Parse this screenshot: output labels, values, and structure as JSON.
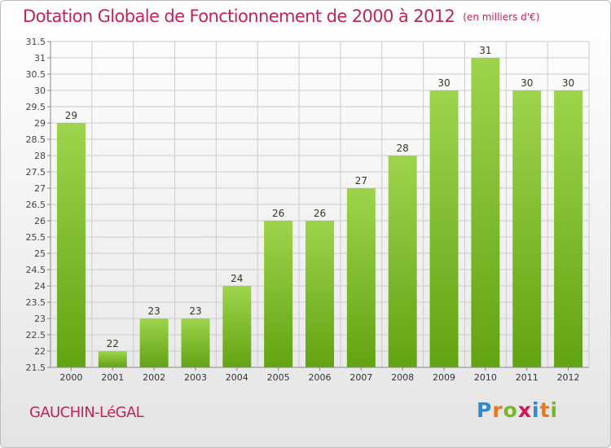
{
  "header": {
    "title": "Dotation Globale de Fonctionnement de 2000 à 2012",
    "subtitle": "(en milliers d'€)"
  },
  "footer": {
    "commune": "GAUCHIN-LéGAL",
    "brand_letters": [
      "P",
      "r",
      "o",
      "x",
      "i",
      "t",
      "i"
    ],
    "brand_colors": [
      "#2e8bd0",
      "#e87722",
      "#79b928",
      "#d4145a",
      "#2e8bd0",
      "#e87722",
      "#79b928"
    ]
  },
  "colors": {
    "title": "#c0245b",
    "bar_light": "#9ed44c",
    "bar_dark": "#62a313",
    "grid": "#cccccc"
  },
  "chart_data": {
    "type": "bar",
    "categories": [
      "2000",
      "2001",
      "2002",
      "2003",
      "2004",
      "2005",
      "2006",
      "2007",
      "2008",
      "2009",
      "2010",
      "2011",
      "2012"
    ],
    "values": [
      29,
      22,
      23,
      23,
      24,
      26,
      26,
      27,
      28,
      30,
      31,
      30,
      30
    ],
    "labels": [
      "29",
      "22",
      "23",
      "23",
      "24",
      "26",
      "26",
      "27",
      "28",
      "30",
      "31",
      "30",
      "30"
    ],
    "ylim": [
      21.5,
      31.5
    ],
    "yticks": [
      "21.5",
      "22",
      "22.5",
      "23",
      "23.5",
      "24",
      "24.5",
      "25",
      "25.5",
      "26",
      "26.5",
      "27",
      "27.5",
      "28",
      "28.5",
      "29",
      "29.5",
      "30",
      "30.5",
      "31",
      "31.5"
    ],
    "grid": true,
    "legend": "none"
  }
}
